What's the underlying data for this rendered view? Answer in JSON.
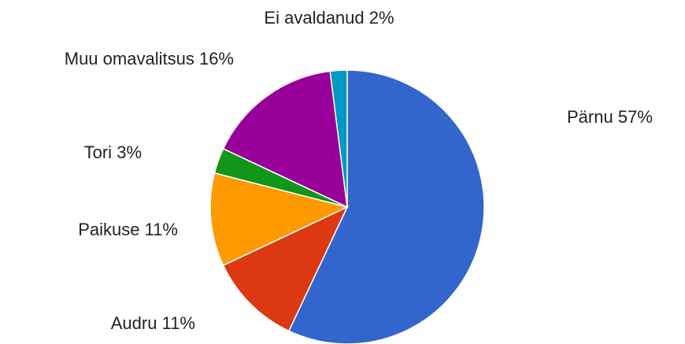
{
  "chart_data": {
    "type": "pie",
    "categories": [
      "Pärnu",
      "Audru",
      "Paikuse",
      "Tori",
      "Muu omavalitsus",
      "Ei avaldanud"
    ],
    "values": [
      57,
      11,
      11,
      3,
      16,
      2
    ],
    "value_labels": [
      "57%",
      "11%",
      "11%",
      "3%",
      "16%",
      "2%"
    ],
    "colors": [
      "#3366cc",
      "#dc3912",
      "#ff9900",
      "#109618",
      "#990099",
      "#0099c6"
    ]
  }
}
